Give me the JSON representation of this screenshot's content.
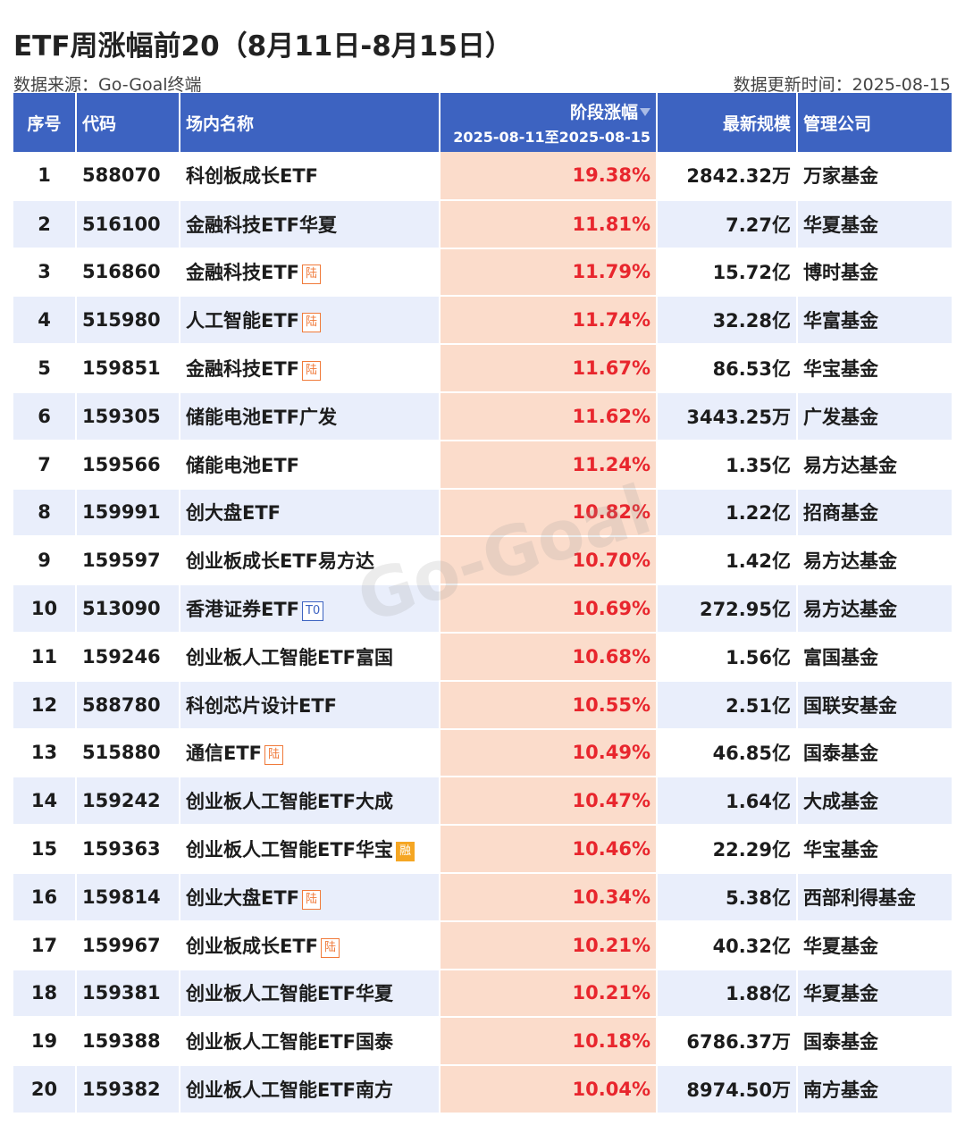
{
  "title": "ETF周涨幅前20（8月11日-8月15日）",
  "source": "数据来源：Go-Goal终端",
  "update": "数据更新时间：2025-08-15",
  "watermark": "Go-Goal",
  "colors": {
    "header": "#3d63c1",
    "change_text": "#e8262d",
    "change_bg": "#fbdccb",
    "row_alt": "#e9eefb"
  },
  "headers": {
    "rank": "序号",
    "code": "代码",
    "name": "场内名称",
    "change": "阶段涨幅",
    "change_period": "2025-08-11至2025-08-15",
    "size": "最新规模",
    "company": "管理公司"
  },
  "rows": [
    {
      "rank": "1",
      "code": "588070",
      "name": "科创板成长ETF",
      "tag": "",
      "change": "19.38%",
      "size": "2842.32万",
      "company": "万家基金"
    },
    {
      "rank": "2",
      "code": "516100",
      "name": "金融科技ETF华夏",
      "tag": "",
      "change": "11.81%",
      "size": "7.27亿",
      "company": "华夏基金"
    },
    {
      "rank": "3",
      "code": "516860",
      "name": "金融科技ETF",
      "tag": "陆",
      "change": "11.79%",
      "size": "15.72亿",
      "company": "博时基金"
    },
    {
      "rank": "4",
      "code": "515980",
      "name": "人工智能ETF",
      "tag": "陆",
      "change": "11.74%",
      "size": "32.28亿",
      "company": "华富基金"
    },
    {
      "rank": "5",
      "code": "159851",
      "name": "金融科技ETF",
      "tag": "陆",
      "change": "11.67%",
      "size": "86.53亿",
      "company": "华宝基金"
    },
    {
      "rank": "6",
      "code": "159305",
      "name": "储能电池ETF广发",
      "tag": "",
      "change": "11.62%",
      "size": "3443.25万",
      "company": "广发基金"
    },
    {
      "rank": "7",
      "code": "159566",
      "name": "储能电池ETF",
      "tag": "",
      "change": "11.24%",
      "size": "1.35亿",
      "company": "易方达基金"
    },
    {
      "rank": "8",
      "code": "159991",
      "name": "创大盘ETF",
      "tag": "",
      "change": "10.82%",
      "size": "1.22亿",
      "company": "招商基金"
    },
    {
      "rank": "9",
      "code": "159597",
      "name": "创业板成长ETF易方达",
      "tag": "",
      "change": "10.70%",
      "size": "1.42亿",
      "company": "易方达基金"
    },
    {
      "rank": "10",
      "code": "513090",
      "name": "香港证券ETF",
      "tag": "T0",
      "change": "10.69%",
      "size": "272.95亿",
      "company": "易方达基金"
    },
    {
      "rank": "11",
      "code": "159246",
      "name": "创业板人工智能ETF富国",
      "tag": "",
      "change": "10.68%",
      "size": "1.56亿",
      "company": "富国基金"
    },
    {
      "rank": "12",
      "code": "588780",
      "name": "科创芯片设计ETF",
      "tag": "",
      "change": "10.55%",
      "size": "2.51亿",
      "company": "国联安基金"
    },
    {
      "rank": "13",
      "code": "515880",
      "name": "通信ETF",
      "tag": "陆",
      "change": "10.49%",
      "size": "46.85亿",
      "company": "国泰基金"
    },
    {
      "rank": "14",
      "code": "159242",
      "name": "创业板人工智能ETF大成",
      "tag": "",
      "change": "10.47%",
      "size": "1.64亿",
      "company": "大成基金"
    },
    {
      "rank": "15",
      "code": "159363",
      "name": "创业板人工智能ETF华宝",
      "tag": "融",
      "change": "10.46%",
      "size": "22.29亿",
      "company": "华宝基金"
    },
    {
      "rank": "16",
      "code": "159814",
      "name": "创业大盘ETF",
      "tag": "陆",
      "change": "10.34%",
      "size": "5.38亿",
      "company": "西部利得基金"
    },
    {
      "rank": "17",
      "code": "159967",
      "name": "创业板成长ETF",
      "tag": "陆",
      "change": "10.21%",
      "size": "40.32亿",
      "company": "华夏基金"
    },
    {
      "rank": "18",
      "code": "159381",
      "name": "创业板人工智能ETF华夏",
      "tag": "",
      "change": "10.21%",
      "size": "1.88亿",
      "company": "华夏基金"
    },
    {
      "rank": "19",
      "code": "159388",
      "name": "创业板人工智能ETF国泰",
      "tag": "",
      "change": "10.18%",
      "size": "6786.37万",
      "company": "国泰基金"
    },
    {
      "rank": "20",
      "code": "159382",
      "name": "创业板人工智能ETF南方",
      "tag": "",
      "change": "10.04%",
      "size": "8974.50万",
      "company": "南方基金"
    }
  ]
}
